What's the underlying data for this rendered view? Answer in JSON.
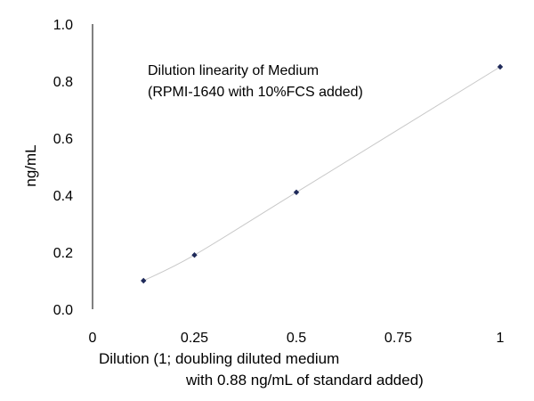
{
  "chart_data": {
    "type": "scatter",
    "title_lines": [
      "Dilution linearity of Medium",
      "(RPMI-1640 with 10%FCS added)"
    ],
    "xlabel_lines": [
      "Dilution (1; doubling diluted medium",
      "with 0.88 ng/mL of standard added)"
    ],
    "ylabel": "ng/mL",
    "xlim": [
      0,
      1
    ],
    "ylim": [
      0,
      1.0
    ],
    "x_ticks": [
      0,
      0.25,
      0.5,
      0.75,
      1
    ],
    "x_tick_labels": [
      "0",
      "0.25",
      "0.5",
      "0.75",
      "1"
    ],
    "y_ticks": [
      0,
      0.2,
      0.4,
      0.6,
      0.8,
      1.0
    ],
    "y_tick_labels": [
      "0.0",
      "0.2",
      "0.4",
      "0.6",
      "0.8",
      "1.0"
    ],
    "grid": false,
    "series": [
      {
        "x": [
          0.125,
          0.25,
          0.5,
          1
        ],
        "y": [
          0.1,
          0.19,
          0.41,
          0.85
        ],
        "marker": "diamond",
        "marker_color": "#1f2a5a",
        "line_color": "#c8c8c8",
        "smooth_line": true
      }
    ]
  }
}
